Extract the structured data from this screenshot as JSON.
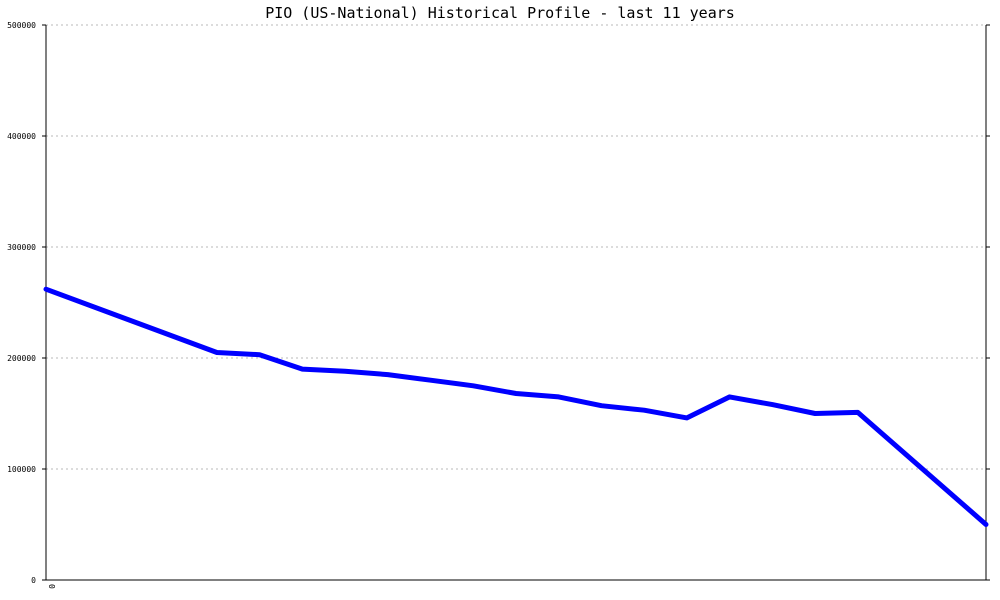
{
  "chart_data": {
    "type": "line",
    "title": "PIO (US-National) Historical Profile - last 11 years",
    "xlabel": "",
    "ylabel": "",
    "ylim": [
      0,
      500000
    ],
    "yticks": [
      0,
      100000,
      200000,
      300000,
      400000,
      500000
    ],
    "ytick_labels": [
      "0",
      "100000",
      "200000",
      "300000",
      "400000",
      "500000"
    ],
    "xtick_labels": [
      "0"
    ],
    "xlim": [
      0,
      22
    ],
    "grid": true,
    "series": [
      {
        "color": "#0000ff",
        "x": [
          0,
          4,
          5,
          6,
          7,
          8,
          9,
          10,
          11,
          12,
          13,
          14,
          15,
          16,
          17,
          18,
          19,
          22
        ],
        "values": [
          262000,
          205000,
          203000,
          190000,
          188000,
          185000,
          180000,
          175000,
          168000,
          165000,
          157000,
          153000,
          146000,
          165000,
          158000,
          150000,
          151000,
          50000
        ]
      }
    ]
  }
}
